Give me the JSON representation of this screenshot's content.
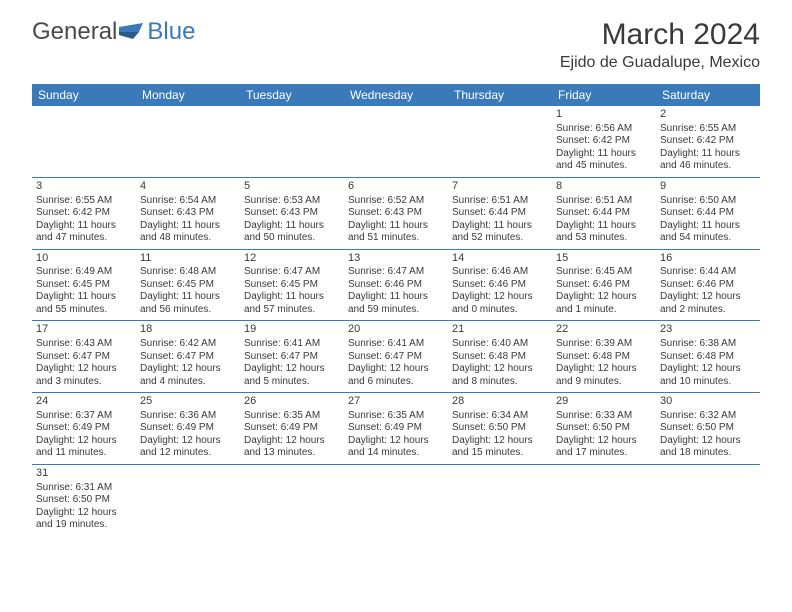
{
  "logo": {
    "part1": "General",
    "part2": "Blue"
  },
  "title": "March 2024",
  "location": "Ejido de Guadalupe, Mexico",
  "colors": {
    "header_bg": "#3a7ab8",
    "header_text": "#ffffff",
    "text": "#3a3a3a",
    "border": "#3a7ab8",
    "logo_gray": "#4a4a4a",
    "logo_blue": "#3a7ab8"
  },
  "day_names": [
    "Sunday",
    "Monday",
    "Tuesday",
    "Wednesday",
    "Thursday",
    "Friday",
    "Saturday"
  ],
  "weeks": [
    [
      null,
      null,
      null,
      null,
      null,
      {
        "n": "1",
        "sr": "6:56 AM",
        "ss": "6:42 PM",
        "dl": "11 hours and 45 minutes."
      },
      {
        "n": "2",
        "sr": "6:55 AM",
        "ss": "6:42 PM",
        "dl": "11 hours and 46 minutes."
      }
    ],
    [
      {
        "n": "3",
        "sr": "6:55 AM",
        "ss": "6:42 PM",
        "dl": "11 hours and 47 minutes."
      },
      {
        "n": "4",
        "sr": "6:54 AM",
        "ss": "6:43 PM",
        "dl": "11 hours and 48 minutes."
      },
      {
        "n": "5",
        "sr": "6:53 AM",
        "ss": "6:43 PM",
        "dl": "11 hours and 50 minutes."
      },
      {
        "n": "6",
        "sr": "6:52 AM",
        "ss": "6:43 PM",
        "dl": "11 hours and 51 minutes."
      },
      {
        "n": "7",
        "sr": "6:51 AM",
        "ss": "6:44 PM",
        "dl": "11 hours and 52 minutes."
      },
      {
        "n": "8",
        "sr": "6:51 AM",
        "ss": "6:44 PM",
        "dl": "11 hours and 53 minutes."
      },
      {
        "n": "9",
        "sr": "6:50 AM",
        "ss": "6:44 PM",
        "dl": "11 hours and 54 minutes."
      }
    ],
    [
      {
        "n": "10",
        "sr": "6:49 AM",
        "ss": "6:45 PM",
        "dl": "11 hours and 55 minutes."
      },
      {
        "n": "11",
        "sr": "6:48 AM",
        "ss": "6:45 PM",
        "dl": "11 hours and 56 minutes."
      },
      {
        "n": "12",
        "sr": "6:47 AM",
        "ss": "6:45 PM",
        "dl": "11 hours and 57 minutes."
      },
      {
        "n": "13",
        "sr": "6:47 AM",
        "ss": "6:46 PM",
        "dl": "11 hours and 59 minutes."
      },
      {
        "n": "14",
        "sr": "6:46 AM",
        "ss": "6:46 PM",
        "dl": "12 hours and 0 minutes."
      },
      {
        "n": "15",
        "sr": "6:45 AM",
        "ss": "6:46 PM",
        "dl": "12 hours and 1 minute."
      },
      {
        "n": "16",
        "sr": "6:44 AM",
        "ss": "6:46 PM",
        "dl": "12 hours and 2 minutes."
      }
    ],
    [
      {
        "n": "17",
        "sr": "6:43 AM",
        "ss": "6:47 PM",
        "dl": "12 hours and 3 minutes."
      },
      {
        "n": "18",
        "sr": "6:42 AM",
        "ss": "6:47 PM",
        "dl": "12 hours and 4 minutes."
      },
      {
        "n": "19",
        "sr": "6:41 AM",
        "ss": "6:47 PM",
        "dl": "12 hours and 5 minutes."
      },
      {
        "n": "20",
        "sr": "6:41 AM",
        "ss": "6:47 PM",
        "dl": "12 hours and 6 minutes."
      },
      {
        "n": "21",
        "sr": "6:40 AM",
        "ss": "6:48 PM",
        "dl": "12 hours and 8 minutes."
      },
      {
        "n": "22",
        "sr": "6:39 AM",
        "ss": "6:48 PM",
        "dl": "12 hours and 9 minutes."
      },
      {
        "n": "23",
        "sr": "6:38 AM",
        "ss": "6:48 PM",
        "dl": "12 hours and 10 minutes."
      }
    ],
    [
      {
        "n": "24",
        "sr": "6:37 AM",
        "ss": "6:49 PM",
        "dl": "12 hours and 11 minutes."
      },
      {
        "n": "25",
        "sr": "6:36 AM",
        "ss": "6:49 PM",
        "dl": "12 hours and 12 minutes."
      },
      {
        "n": "26",
        "sr": "6:35 AM",
        "ss": "6:49 PM",
        "dl": "12 hours and 13 minutes."
      },
      {
        "n": "27",
        "sr": "6:35 AM",
        "ss": "6:49 PM",
        "dl": "12 hours and 14 minutes."
      },
      {
        "n": "28",
        "sr": "6:34 AM",
        "ss": "6:50 PM",
        "dl": "12 hours and 15 minutes."
      },
      {
        "n": "29",
        "sr": "6:33 AM",
        "ss": "6:50 PM",
        "dl": "12 hours and 17 minutes."
      },
      {
        "n": "30",
        "sr": "6:32 AM",
        "ss": "6:50 PM",
        "dl": "12 hours and 18 minutes."
      }
    ],
    [
      {
        "n": "31",
        "sr": "6:31 AM",
        "ss": "6:50 PM",
        "dl": "12 hours and 19 minutes."
      },
      null,
      null,
      null,
      null,
      null,
      null
    ]
  ],
  "labels": {
    "sunrise": "Sunrise:",
    "sunset": "Sunset:",
    "daylight": "Daylight:"
  }
}
